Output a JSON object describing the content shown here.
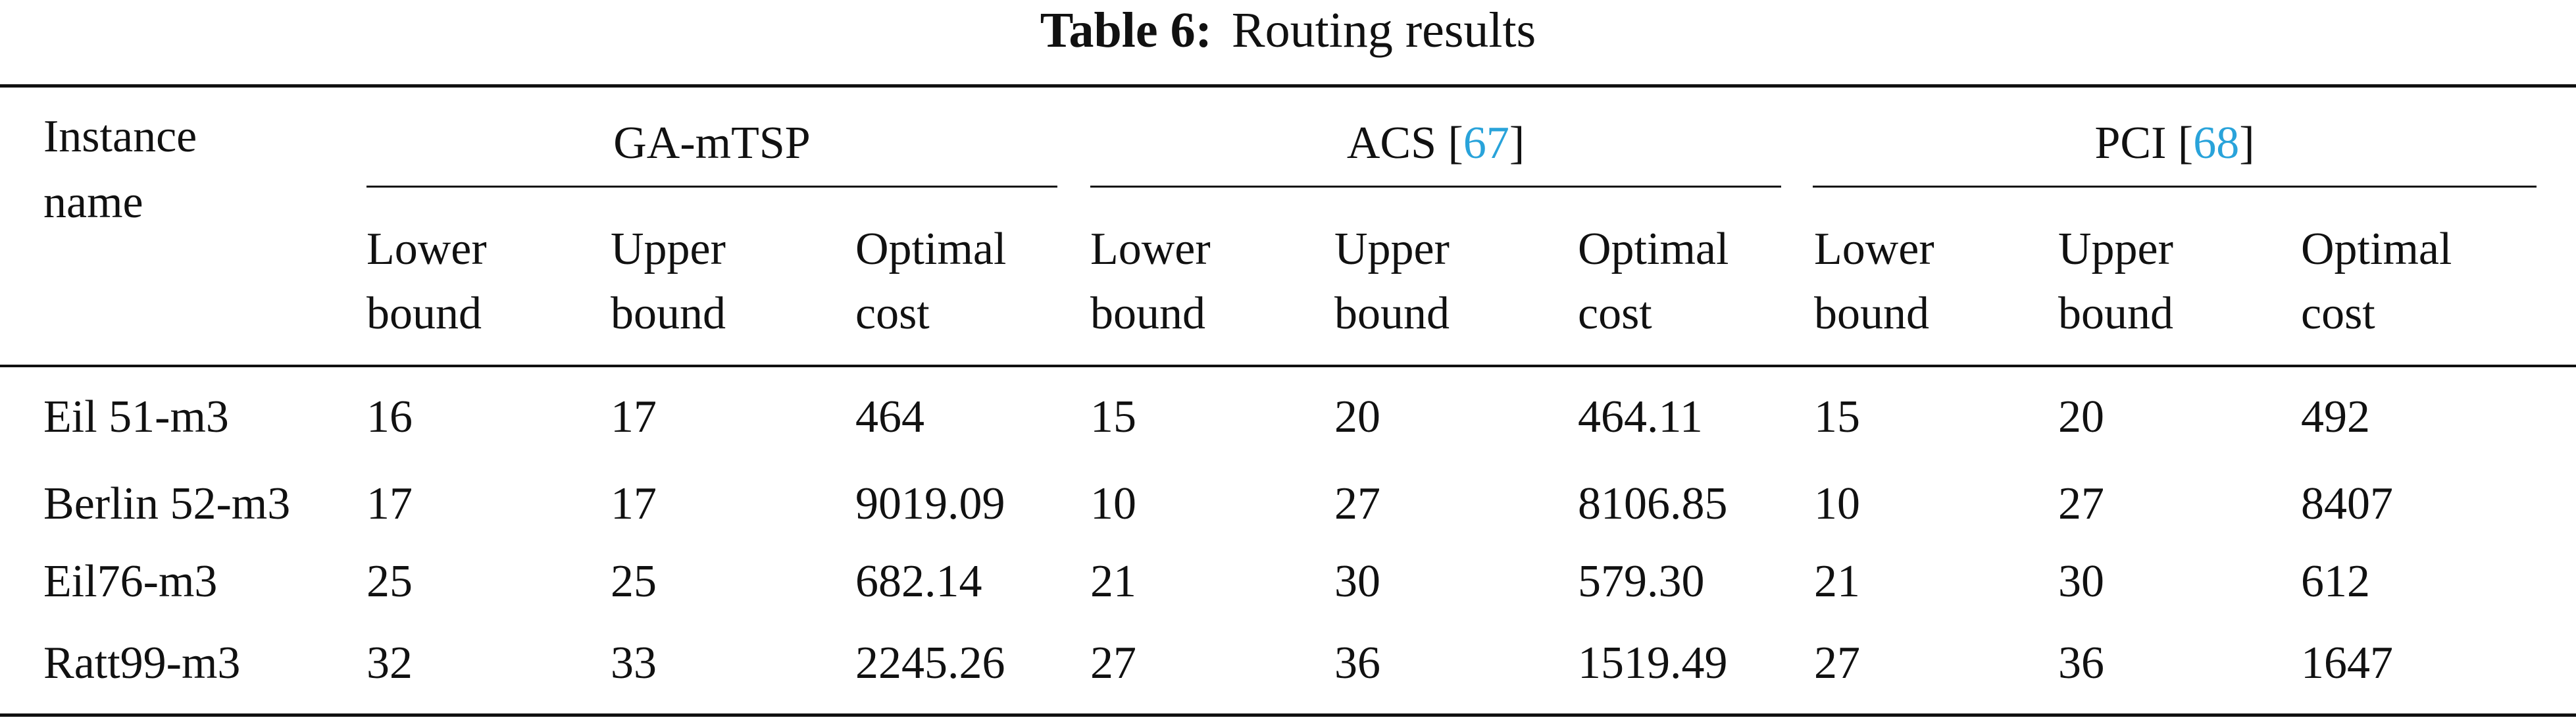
{
  "caption": {
    "label": "Table 6:",
    "text": "Routing results"
  },
  "header": {
    "instance_line1": "Instance",
    "instance_line2": "name",
    "groups": [
      {
        "name": "GA-mTSP",
        "ref": ""
      },
      {
        "name": "ACS [",
        "ref": "67",
        "close": "]"
      },
      {
        "name": "PCI [",
        "ref": "68",
        "close": "]"
      }
    ],
    "subcolumns": [
      {
        "line1": "Lower",
        "line2": "bound"
      },
      {
        "line1": "Upper",
        "line2": "bound"
      },
      {
        "line1": "Optimal",
        "line2": "cost"
      }
    ],
    "ref_color": "#29a3da"
  },
  "rows": [
    [
      "Eil 51-m3",
      "16",
      "17",
      "464",
      "15",
      "20",
      "464.11",
      "15",
      "20",
      "492"
    ],
    [
      "Berlin 52-m3",
      "17",
      "17",
      "9019.09",
      "10",
      "27",
      "8106.85",
      "10",
      "27",
      "8407"
    ],
    [
      "Eil76-m3",
      "25",
      "25",
      "682.14",
      "21",
      "30",
      "579.30",
      "21",
      "30",
      "612"
    ],
    [
      "Ratt99-m3",
      "32",
      "33",
      "2245.26",
      "27",
      "36",
      "1519.49",
      "27",
      "36",
      "1647"
    ]
  ]
}
